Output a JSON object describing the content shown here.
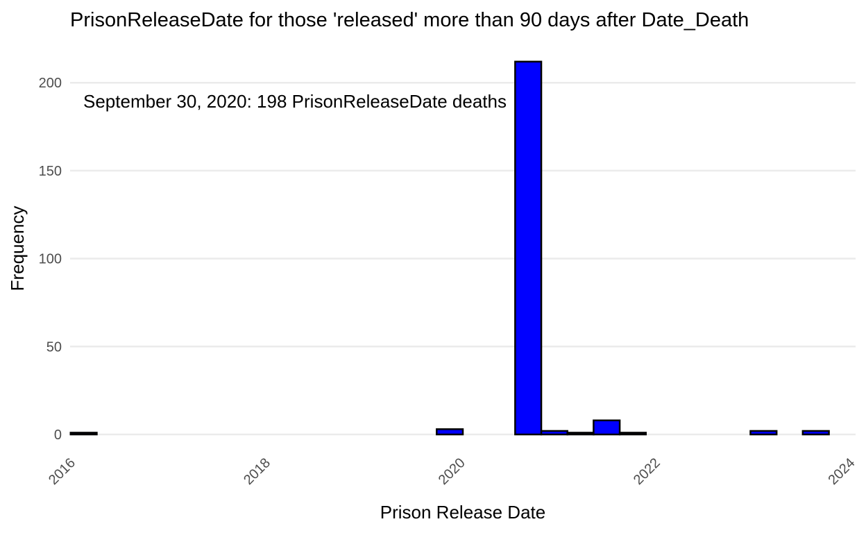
{
  "chart_data": {
    "type": "bar",
    "title": "PrisonReleaseDate for those 'released' more than 90 days after Date_Death",
    "xlabel": "Prison Release Date",
    "ylabel": "Frequency",
    "annotation": "September 30, 2020: 198 PrisonReleaseDate deaths",
    "bar_fill": "#0000ff",
    "bar_outline": "#000000",
    "grid": "horizontal",
    "x_ticks": [
      {
        "value": "2016-01-01",
        "label": "2016"
      },
      {
        "value": "2018-01-01",
        "label": "2018"
      },
      {
        "value": "2020-01-01",
        "label": "2020"
      },
      {
        "value": "2022-01-01",
        "label": "2022"
      },
      {
        "value": "2024-01-01",
        "label": "2024"
      }
    ],
    "y_ticks": [
      0,
      50,
      100,
      150,
      200
    ],
    "ylim": [
      0,
      212
    ],
    "xlim": [
      "2015-12-10",
      "2024-01-01"
    ],
    "bins": [
      {
        "start": "2015-12-12",
        "end": "2016-03-19",
        "count": 1
      },
      {
        "start": "2016-03-19",
        "end": "2016-06-25",
        "count": 0
      },
      {
        "start": "2016-06-25",
        "end": "2016-10-01",
        "count": 0
      },
      {
        "start": "2016-10-01",
        "end": "2017-01-07",
        "count": 0
      },
      {
        "start": "2017-01-07",
        "end": "2017-04-15",
        "count": 0
      },
      {
        "start": "2017-04-15",
        "end": "2017-07-22",
        "count": 0
      },
      {
        "start": "2017-07-22",
        "end": "2017-10-28",
        "count": 0
      },
      {
        "start": "2017-10-28",
        "end": "2018-02-03",
        "count": 0
      },
      {
        "start": "2018-02-03",
        "end": "2018-05-12",
        "count": 0
      },
      {
        "start": "2018-05-12",
        "end": "2018-08-18",
        "count": 0
      },
      {
        "start": "2018-08-18",
        "end": "2018-11-24",
        "count": 0
      },
      {
        "start": "2018-11-24",
        "end": "2019-03-02",
        "count": 0
      },
      {
        "start": "2019-03-02",
        "end": "2019-06-08",
        "count": 0
      },
      {
        "start": "2019-06-08",
        "end": "2019-09-14",
        "count": 0
      },
      {
        "start": "2019-09-14",
        "end": "2019-12-21",
        "count": 3
      },
      {
        "start": "2019-12-21",
        "end": "2020-03-28",
        "count": 0
      },
      {
        "start": "2020-03-28",
        "end": "2020-07-04",
        "count": 0
      },
      {
        "start": "2020-07-04",
        "end": "2020-10-10",
        "count": 212
      },
      {
        "start": "2020-10-10",
        "end": "2021-01-16",
        "count": 2
      },
      {
        "start": "2021-01-16",
        "end": "2021-04-24",
        "count": 1
      },
      {
        "start": "2021-04-24",
        "end": "2021-07-31",
        "count": 8
      },
      {
        "start": "2021-07-31",
        "end": "2021-11-06",
        "count": 1
      },
      {
        "start": "2021-11-06",
        "end": "2022-02-12",
        "count": 0
      },
      {
        "start": "2022-02-12",
        "end": "2022-05-21",
        "count": 0
      },
      {
        "start": "2022-05-21",
        "end": "2022-08-27",
        "count": 0
      },
      {
        "start": "2022-08-27",
        "end": "2022-12-03",
        "count": 0
      },
      {
        "start": "2022-12-03",
        "end": "2023-03-11",
        "count": 2
      },
      {
        "start": "2023-03-11",
        "end": "2023-06-17",
        "count": 0
      },
      {
        "start": "2023-06-17",
        "end": "2023-09-23",
        "count": 2
      }
    ]
  }
}
